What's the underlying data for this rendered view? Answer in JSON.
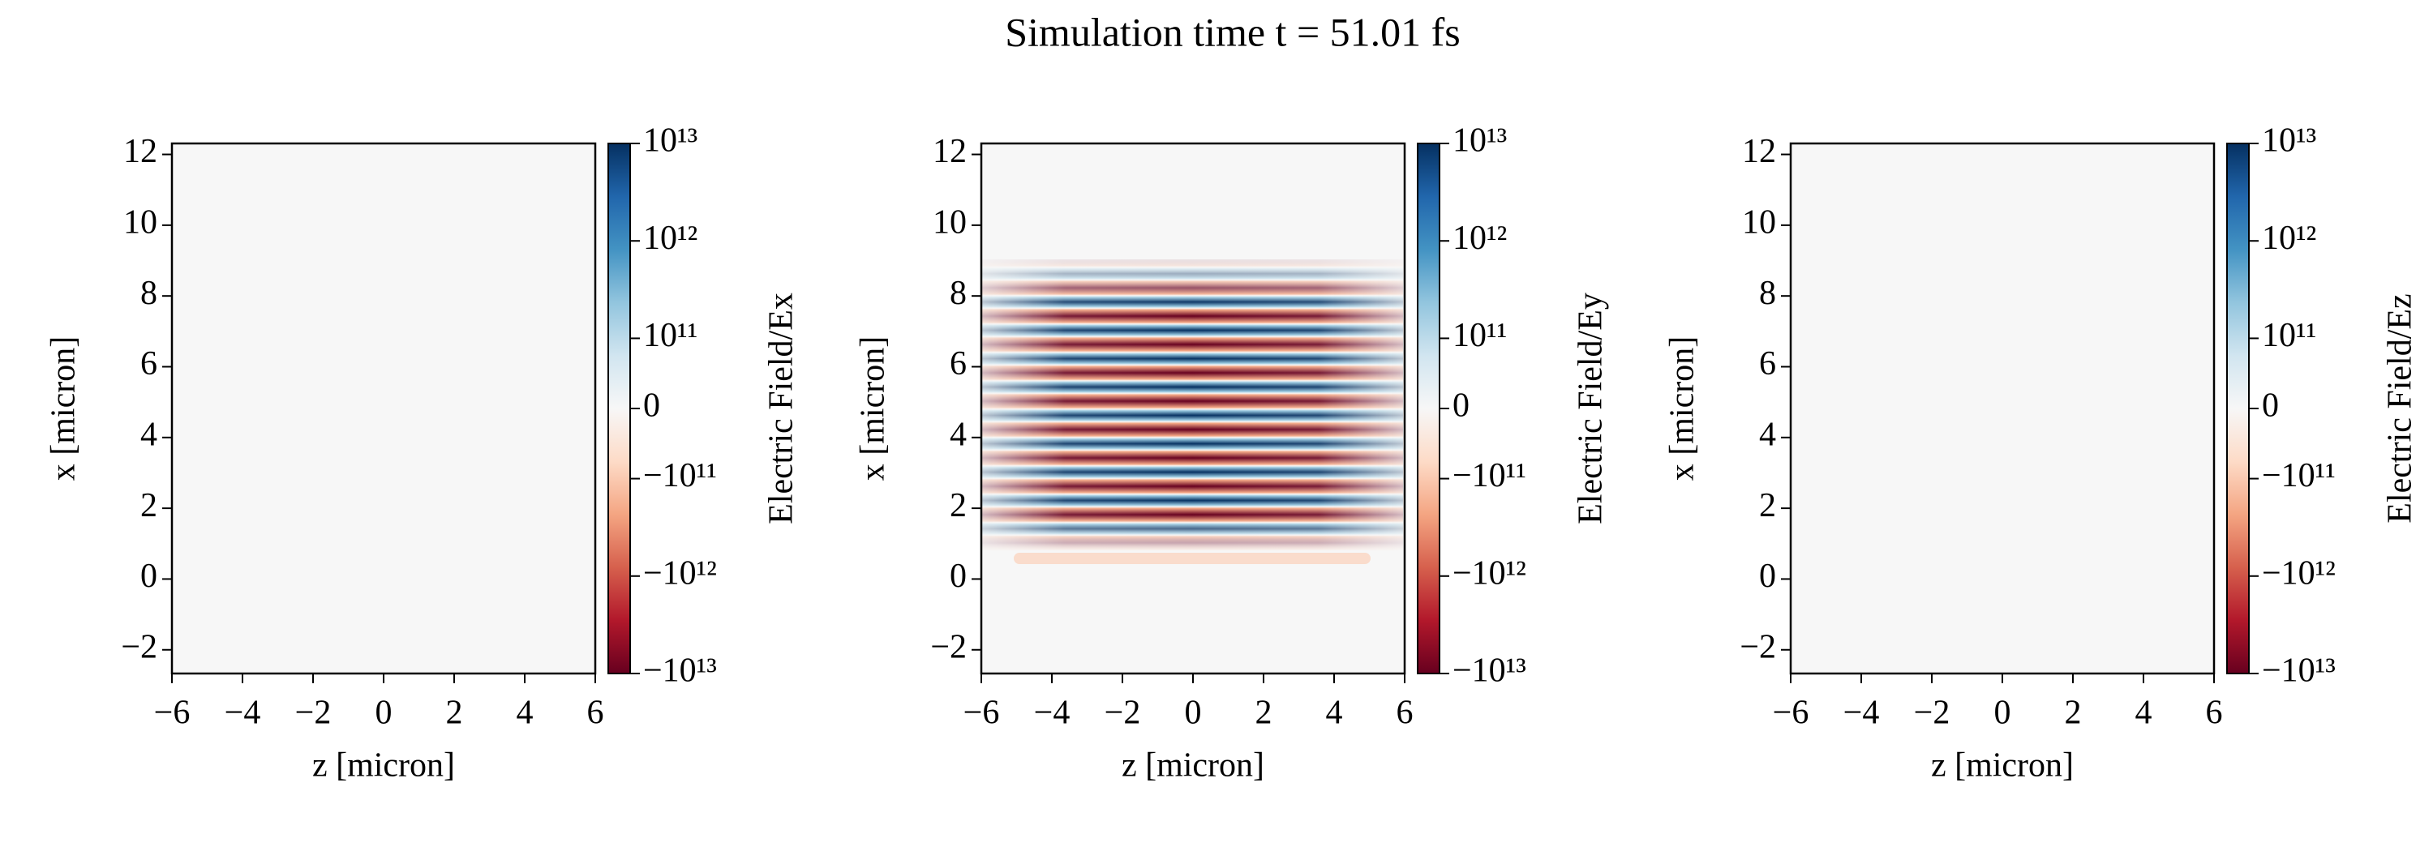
{
  "title": "Simulation time t = 51.01 fs",
  "chart_data": [
    {
      "type": "heatmap",
      "xlabel": "z [micron]",
      "ylabel": "x [micron]",
      "xlim": [
        -6,
        6
      ],
      "ylim": [
        -2.67,
        12.31
      ],
      "xticks": [
        {
          "value": -6,
          "label": "−6"
        },
        {
          "value": -4,
          "label": "−4"
        },
        {
          "value": -2,
          "label": "−2"
        },
        0,
        2,
        4,
        6
      ],
      "yticks": [
        {
          "value": -2,
          "label": "−2"
        },
        0,
        2,
        4,
        6,
        8,
        10,
        12
      ],
      "colorbar_label": "Electric Field/Ex",
      "colorbar_scale": "symlog",
      "clim": [
        -10000000000000.0,
        10000000000000.0
      ],
      "colorbar_ticks": [
        {
          "value": -10000000000000.0,
          "label": "−10¹³"
        },
        {
          "value": -1000000000000.0,
          "label": "−10¹²"
        },
        {
          "value": -100000000000.0,
          "label": "−10¹¹"
        },
        0,
        {
          "value": 100000000000.0,
          "label": "10¹¹"
        },
        {
          "value": 1000000000000.0,
          "label": "10¹²"
        },
        {
          "value": 10000000000000.0,
          "label": "10¹³"
        }
      ],
      "colormap": [
        "#67001f",
        "#b2182b",
        "#d6604d",
        "#f4a582",
        "#fddbc7",
        "#f7f7f7",
        "#d1e5f0",
        "#92c5de",
        "#4393c3",
        "#2166ac",
        "#053061"
      ]
    },
    {
      "type": "heatmap",
      "xlabel": "z [micron]",
      "ylabel": "x [micron]",
      "xlim": [
        -6,
        6
      ],
      "ylim": [
        -2.67,
        12.31
      ],
      "xticks": [
        {
          "value": -6,
          "label": "−6"
        },
        {
          "value": -4,
          "label": "−4"
        },
        {
          "value": -2,
          "label": "−2"
        },
        0,
        2,
        4,
        6
      ],
      "yticks": [
        {
          "value": -2,
          "label": "−2"
        },
        0,
        2,
        4,
        6,
        8,
        10,
        12
      ],
      "colorbar_label": "Electric Field/Ey",
      "colorbar_scale": "symlog",
      "clim": [
        -10000000000000.0,
        10000000000000.0
      ],
      "colorbar_ticks": [
        {
          "value": -10000000000000.0,
          "label": "−10¹³"
        },
        {
          "value": -1000000000000.0,
          "label": "−10¹²"
        },
        {
          "value": -100000000000.0,
          "label": "−10¹¹"
        },
        0,
        {
          "value": 100000000000.0,
          "label": "10¹¹"
        },
        {
          "value": 1000000000000.0,
          "label": "10¹²"
        },
        {
          "value": 10000000000000.0,
          "label": "10¹³"
        }
      ],
      "colormap": [
        "#67001f",
        "#b2182b",
        "#d6604d",
        "#f4a582",
        "#fddbc7",
        "#f7f7f7",
        "#d1e5f0",
        "#92c5de",
        "#4393c3",
        "#2166ac",
        "#053061"
      ]
    },
    {
      "type": "heatmap",
      "xlabel": "z [micron]",
      "ylabel": "x [micron]",
      "xlim": [
        -6,
        6
      ],
      "ylim": [
        -2.67,
        12.31
      ],
      "xticks": [
        {
          "value": -6,
          "label": "−6"
        },
        {
          "value": -4,
          "label": "−4"
        },
        {
          "value": -2,
          "label": "−2"
        },
        0,
        2,
        4,
        6
      ],
      "yticks": [
        {
          "value": -2,
          "label": "−2"
        },
        0,
        2,
        4,
        6,
        8,
        10,
        12
      ],
      "colorbar_label": "Electric Field/Ez",
      "colorbar_scale": "symlog",
      "clim": [
        -10000000000000.0,
        10000000000000.0
      ],
      "colorbar_ticks": [
        {
          "value": -10000000000000.0,
          "label": "−10¹³"
        },
        {
          "value": -1000000000000.0,
          "label": "−10¹²"
        },
        {
          "value": -100000000000.0,
          "label": "−10¹¹"
        },
        0,
        {
          "value": 100000000000.0,
          "label": "10¹¹"
        },
        {
          "value": 1000000000000.0,
          "label": "10¹²"
        },
        {
          "value": 10000000000000.0,
          "label": "10¹³"
        }
      ],
      "colormap": [
        "#67001f",
        "#b2182b",
        "#d6604d",
        "#f4a582",
        "#fddbc7",
        "#f7f7f7",
        "#d1e5f0",
        "#92c5de",
        "#4393c3",
        "#2166ac",
        "#053061"
      ]
    }
  ]
}
